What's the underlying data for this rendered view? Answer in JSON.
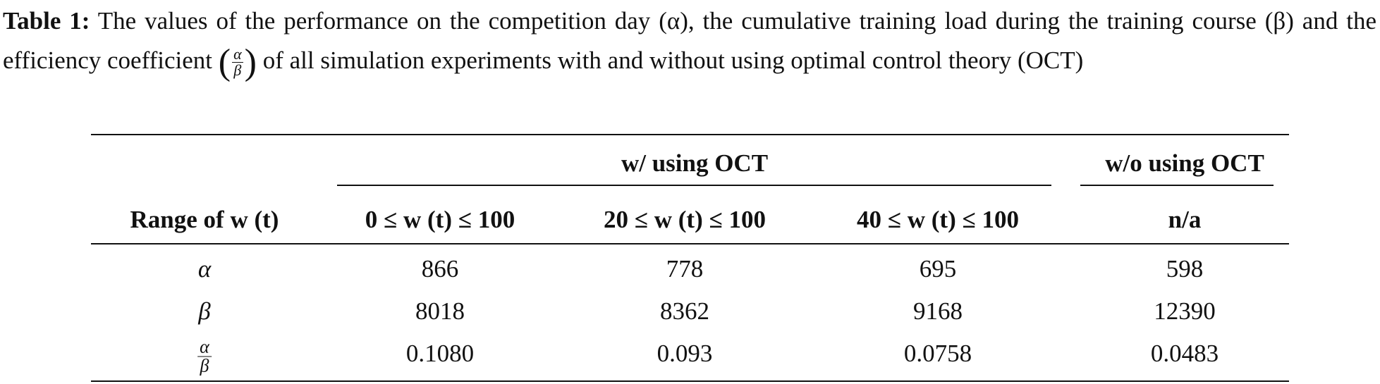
{
  "caption": {
    "label": "Table 1:",
    "text_before": "The values of the performance on the competition day (α), the cumulative training load during the training course (β) and the efficiency coefficient",
    "fraction": {
      "numerator": "α",
      "denominator": "β"
    },
    "text_after": "of all simulation experiments with and without using optimal control theory (OCT)"
  },
  "table": {
    "group_headers": [
      "w/ using OCT",
      "w/o using OCT"
    ],
    "columns": [
      "Range of w (t)",
      "0 ≤ w (t) ≤ 100",
      "20 ≤ w (t) ≤ 100",
      "40 ≤ w (t) ≤ 100",
      "n/a"
    ],
    "rows": [
      {
        "label": "α",
        "values": [
          "866",
          "778",
          "695",
          "598"
        ]
      },
      {
        "label": "β",
        "values": [
          "8018",
          "8362",
          "9168",
          "12390"
        ]
      },
      {
        "label": {
          "numerator": "α",
          "denominator": "β"
        },
        "values": [
          "0.1080",
          "0.093",
          "0.0758",
          "0.0483"
        ]
      }
    ]
  }
}
